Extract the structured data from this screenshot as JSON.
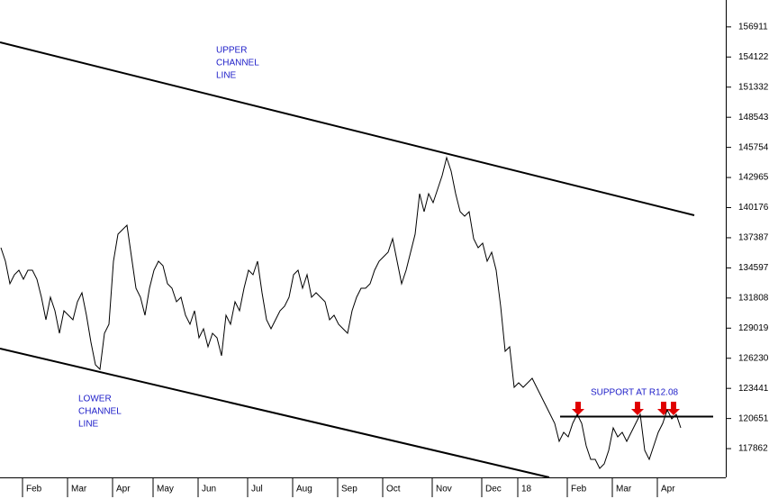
{
  "chart_data": {
    "type": "line",
    "color": "#000000",
    "categories": [
      null,
      null,
      null,
      null,
      null,
      null,
      null,
      "Feb",
      null,
      null,
      null,
      null,
      null,
      null,
      null,
      null,
      null,
      "Mar",
      null,
      null,
      null,
      null,
      null,
      null,
      null,
      null,
      null,
      "Apr",
      null,
      null,
      null,
      null,
      null,
      null,
      null,
      null,
      "May",
      null,
      null,
      null,
      null,
      null,
      null,
      null,
      null,
      null,
      "Jun",
      null,
      null,
      null,
      null,
      null,
      null,
      null,
      null,
      null,
      null,
      "Jul",
      null,
      null,
      null,
      null,
      null,
      null,
      null,
      null,
      null,
      "Aug",
      null,
      null,
      null,
      null,
      null,
      null,
      null,
      null,
      null,
      "Sep",
      null,
      null,
      null,
      null,
      null,
      null,
      null,
      null,
      null,
      "Oct",
      null,
      null,
      null,
      null,
      null,
      null,
      null,
      null,
      null,
      null,
      "Nov",
      null,
      null,
      null,
      null,
      null,
      null,
      null,
      null,
      null,
      null,
      "Dec",
      null,
      null,
      null,
      null,
      null,
      null,
      null,
      "18",
      null,
      null,
      null,
      null,
      null,
      null,
      null,
      null,
      null,
      null,
      "Feb",
      null,
      null,
      null,
      null,
      null,
      null,
      null,
      null,
      null,
      "Mar",
      null,
      null,
      null,
      null,
      null,
      null,
      null,
      null,
      null,
      "Apr",
      null,
      null,
      null
    ],
    "values": [
      136465,
      135214,
      133129,
      133963,
      134380,
      133546,
      134380,
      134380,
      133546,
      131878,
      129793,
      131878,
      130627,
      128542,
      130627,
      130210,
      129793,
      131461,
      132295,
      130210,
      127708,
      125623,
      125206,
      128542,
      129376,
      135214,
      137716,
      138133,
      138550,
      135631,
      132712,
      131878,
      130210,
      132712,
      134380,
      135214,
      134797,
      133129,
      132712,
      131461,
      131878,
      130210,
      129376,
      130627,
      128125,
      128959,
      127291,
      128542,
      128125,
      126457,
      130210,
      129376,
      131461,
      130627,
      132712,
      134380,
      133963,
      135214,
      132295,
      129793,
      128959,
      129793,
      130627,
      131044,
      131878,
      133963,
      134380,
      132712,
      133963,
      131878,
      132295,
      131878,
      131461,
      129793,
      130210,
      129376,
      128959,
      128542,
      130627,
      131878,
      132712,
      132712,
      133129,
      134380,
      135214,
      135631,
      136048,
      137299,
      135214,
      133129,
      134380,
      136048,
      137716,
      141469,
      139801,
      141469,
      140635,
      141886,
      143137,
      144805,
      143554,
      141469,
      139801,
      139384,
      139801,
      137299,
      136465,
      136882,
      135214,
      136048,
      134380,
      131044,
      126874,
      127291,
      123538,
      123955,
      123538,
      123955,
      124372,
      123538,
      122704,
      121870,
      121036,
      120202,
      118534,
      119368,
      118951,
      120202,
      121036,
      120202,
      118117,
      116866,
      116866,
      116032,
      116449,
      117700,
      119785,
      118951,
      119368,
      118534,
      119368,
      120202,
      121036,
      117700,
      116866,
      118117,
      119368,
      120202,
      121453,
      120619,
      121036,
      119785
    ],
    "ylim": [
      115200,
      159400
    ],
    "yticks": [
      117862,
      120651,
      123441,
      126230,
      129019,
      131808,
      134597,
      137387,
      140176,
      142965,
      145754,
      148543,
      151332,
      154122,
      156911
    ],
    "annotations": [
      {
        "text": [
          "UPPER",
          "CHANNEL",
          "LINE"
        ]
      },
      {
        "text": [
          "LOWER",
          "CHANNEL",
          "LINE"
        ]
      },
      {
        "text": [
          "SUPPORT AT R12.08"
        ]
      }
    ]
  }
}
